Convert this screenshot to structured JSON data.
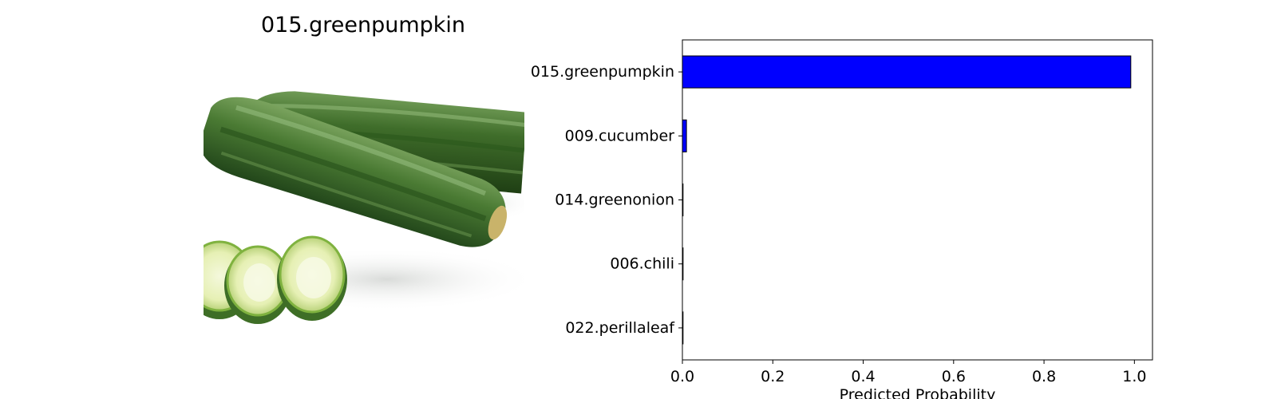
{
  "image_panel": {
    "title": "015.greenpumpkin",
    "photo_subject": "green zucchini with round slices on white background"
  },
  "chart_data": {
    "type": "bar",
    "orientation": "horizontal",
    "categories": [
      "015.greenpumpkin",
      "009.cucumber",
      "014.greenonion",
      "006.chili",
      "022.perillaleaf"
    ],
    "values": [
      0.992,
      0.009,
      0.0005,
      0.0015,
      0.0005
    ],
    "xlabel": "Predicted Probability",
    "ylabel": "",
    "xlim": [
      0,
      1.04
    ],
    "xticks": [
      "0.0",
      "0.2",
      "0.4",
      "0.6",
      "0.8",
      "1.0"
    ],
    "grid": false,
    "legend": "none",
    "bar_color": "#0000ff",
    "bar_edge_color": "#000000"
  }
}
